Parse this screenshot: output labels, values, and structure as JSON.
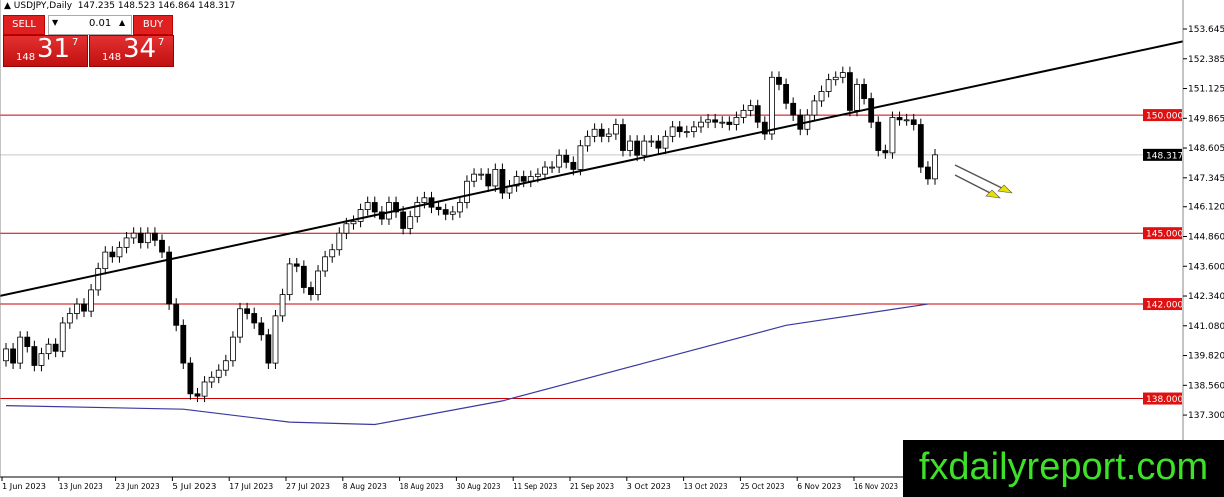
{
  "header": {
    "symbol": "USDJPY,Daily",
    "ohlc": "147.235 148.523 146.864 148.317"
  },
  "trade_panel": {
    "sell_label": "SELL",
    "buy_label": "BUY",
    "lot": "0.01",
    "sell_small": "148",
    "sell_big": "31",
    "sell_pip": "7",
    "buy_small": "148",
    "buy_big": "34",
    "buy_pip": "7"
  },
  "watermark": "fxdailyreport.com",
  "chart_data": {
    "type": "candlestick",
    "title": "USDJPY,Daily",
    "ylim": [
      136.6,
      154.8
    ],
    "y_ticks": [
      "153.645",
      "152.385",
      "151.125",
      "149.865",
      "148.605",
      "147.345",
      "146.120",
      "144.860",
      "143.600",
      "142.340",
      "141.080",
      "139.820",
      "138.560",
      "137.300"
    ],
    "x_ticks": [
      "1 Jun 2023",
      "13 Jun 2023",
      "23 Jun 2023",
      "5 Jul 2023",
      "17 Jul 2023",
      "27 Jul 2023",
      "8 Aug 2023",
      "18 Aug 2023",
      "30 Aug 2023",
      "11 Sep 2023",
      "21 Sep 2023",
      "3 Oct 2023",
      "13 Oct 2023",
      "25 Oct 2023",
      "6 Nov 2023",
      "16 Nov 2023"
    ],
    "first_open": 139.6,
    "close": [
      140.1,
      139.5,
      140.6,
      140.2,
      139.4,
      139.9,
      140.3,
      140.0,
      141.2,
      141.6,
      142.0,
      141.7,
      142.6,
      143.5,
      144.2,
      144.0,
      144.4,
      144.8,
      145.0,
      144.6,
      145.0,
      144.7,
      144.2,
      142.0,
      141.1,
      139.5,
      138.2,
      138.1,
      138.7,
      138.9,
      139.2,
      139.6,
      140.6,
      141.8,
      141.6,
      141.2,
      140.7,
      139.5,
      141.5,
      142.4,
      143.7,
      143.6,
      142.7,
      142.4,
      143.4,
      144.0,
      144.3,
      145.0,
      145.4,
      145.5,
      146.0,
      146.3,
      145.9,
      145.6,
      146.3,
      145.9,
      145.2,
      145.7,
      146.3,
      146.5,
      146.1,
      146.0,
      145.8,
      145.9,
      146.3,
      147.2,
      147.5,
      147.5,
      147.0,
      147.7,
      146.7,
      147.0,
      147.4,
      147.2,
      147.4,
      147.5,
      147.8,
      147.8,
      148.3,
      148.0,
      147.7,
      148.7,
      149.1,
      149.4,
      149.1,
      149.2,
      149.6,
      148.5,
      148.9,
      148.3,
      148.9,
      148.9,
      148.6,
      149.1,
      149.5,
      149.3,
      149.3,
      149.5,
      149.7,
      149.8,
      149.7,
      149.7,
      149.6,
      149.9,
      150.2,
      150.4,
      149.7,
      149.2,
      151.6,
      151.3,
      150.5,
      150.0,
      149.4,
      150.0,
      150.6,
      151.0,
      151.5,
      151.6,
      151.8,
      150.2,
      151.3,
      150.7,
      149.7,
      148.5,
      148.4,
      149.9,
      149.8,
      149.8,
      149.6,
      147.8,
      147.3,
      148.317
    ],
    "horizontal_levels": [
      {
        "label": "150.000",
        "value": 150.0,
        "color": "#cc0000"
      },
      {
        "label": "145.000",
        "value": 145.0,
        "color": "#cc0000"
      },
      {
        "label": "142.000",
        "value": 142.0,
        "color": "#cc0000"
      },
      {
        "label": "138.000",
        "value": 138.0,
        "color": "#cc0000"
      }
    ],
    "current_price": {
      "label": "148.317",
      "value": 148.317
    },
    "moving_average": {
      "color": "#3a3aa0",
      "points": [
        [
          0,
          137.7
        ],
        [
          25,
          137.55
        ],
        [
          40,
          137.0
        ],
        [
          52,
          136.9
        ],
        [
          70,
          137.9
        ],
        [
          90,
          139.5
        ],
        [
          110,
          141.1
        ],
        [
          130,
          142.0
        ]
      ]
    },
    "trendline": {
      "color": "#000000",
      "from": [
        0,
        142.4
      ],
      "to": [
        161,
        152.8
      ]
    },
    "colors": {
      "bull": "#ffffff",
      "bear": "#000000",
      "label_bg": "#e01010",
      "arrow": "#e8e000"
    }
  }
}
